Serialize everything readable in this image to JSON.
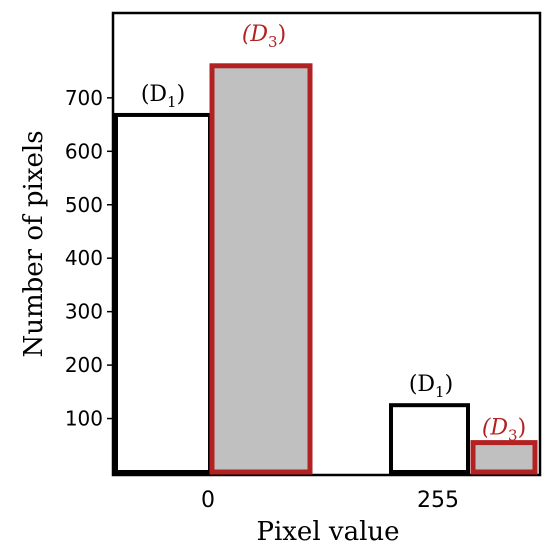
{
  "chart_data": {
    "type": "bar",
    "categories": [
      "0",
      "255"
    ],
    "series": [
      {
        "label_parts": [
          "(D",
          "1",
          ")"
        ],
        "label_italic": false,
        "values": [
          668,
          125
        ],
        "fill": "#ffffff",
        "stroke": "#000000",
        "label_color": "#000000"
      },
      {
        "label_parts": [
          "(D",
          "3",
          ")"
        ],
        "label_italic": true,
        "values": [
          760,
          55
        ],
        "fill": "#c0c0c0",
        "stroke": "#b22222",
        "label_color": "#b22222"
      }
    ],
    "xlabel": "Pixel value",
    "ylabel": "Number of pixels",
    "yticks": [
      100,
      200,
      300,
      400,
      500,
      600,
      700
    ],
    "ylim": [
      0,
      860
    ],
    "grid": false,
    "legend": "none"
  }
}
